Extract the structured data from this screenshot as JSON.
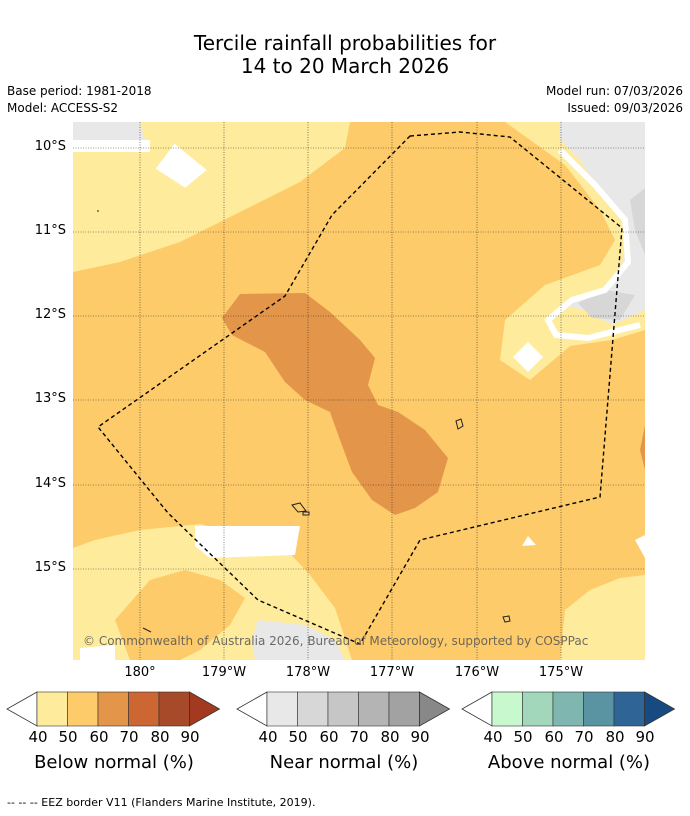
{
  "title": {
    "line1": "Tercile rainfall probabilities for",
    "line2": "14 to 20 March 2026"
  },
  "meta": {
    "base_period": "Base period: 1981-2018",
    "model": "Model: ACCESS-S2",
    "model_run": "Model run: 07/03/2026",
    "issued": "Issued: 09/03/2026"
  },
  "map": {
    "lat_labels": [
      "10°S",
      "11°S",
      "12°S",
      "13°S",
      "14°S",
      "15°S"
    ],
    "lon_labels": [
      "180°",
      "179°W",
      "178°W",
      "177°W",
      "176°W",
      "175°W"
    ],
    "copyright": "© Commonwealth of Australia 2026, Bureau of Meteorology, supported by COSPPac"
  },
  "colorbars": [
    {
      "label": "Below normal (%)",
      "ticks": [
        "40",
        "50",
        "60",
        "70",
        "80",
        "90"
      ],
      "colors": [
        "#ffeb9c",
        "#fdcb69",
        "#e3954a",
        "#cc6633",
        "#a64a2a",
        "#a33a1f"
      ]
    },
    {
      "label": "Near normal (%)",
      "ticks": [
        "40",
        "50",
        "60",
        "70",
        "80",
        "90"
      ],
      "colors": [
        "#e8e8e8",
        "#d7d7d7",
        "#c6c6c6",
        "#b4b4b4",
        "#a2a2a2",
        "#888888"
      ]
    },
    {
      "label": "Above normal (%)",
      "ticks": [
        "40",
        "50",
        "60",
        "70",
        "80",
        "90"
      ],
      "colors": [
        "#c8f8cd",
        "#a2d7bb",
        "#7fb7b0",
        "#5a93a2",
        "#2e6496",
        "#164a80"
      ]
    }
  ],
  "colors": {
    "below_40": "#ffeb9c",
    "below_50": "#fdcb69",
    "below_60": "#e3954a",
    "near_40": "#e8e8e8",
    "near_50": "#d7d7d7"
  },
  "footnote": "--  --  -- EEZ border V11 (Flanders Marine Institute, 2019)."
}
